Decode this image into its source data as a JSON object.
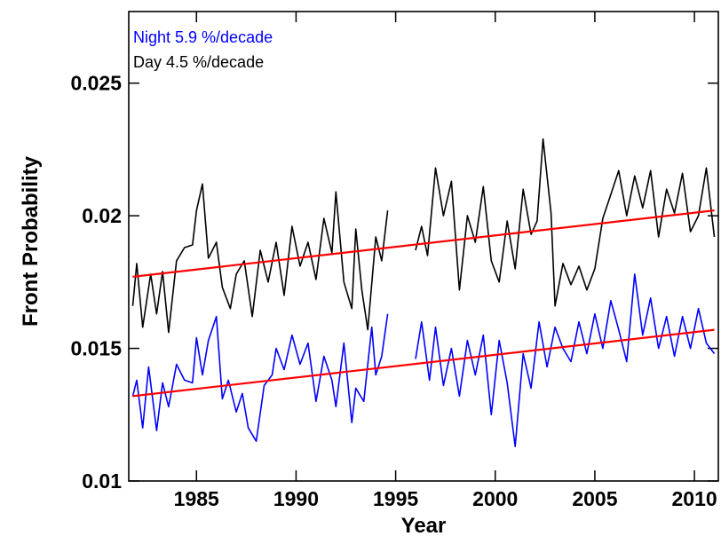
{
  "chart_data": {
    "type": "line",
    "title": "",
    "xlabel": "Year",
    "ylabel": "Front Probability",
    "xlim": [
      1981.6,
      2011.2
    ],
    "ylim": [
      0.01,
      0.0277
    ],
    "x_ticks": [
      1985,
      1990,
      1995,
      2000,
      2005,
      2010
    ],
    "x_tick_labels": [
      "1985",
      "1990",
      "1995",
      "2000",
      "2005",
      "2010"
    ],
    "y_ticks": [
      0.01,
      0.015,
      0.02,
      0.025
    ],
    "y_tick_labels": [
      "0.01",
      "0.015",
      "0.02",
      "0.025"
    ],
    "grid": false,
    "legend_placement": "top-left",
    "annotations": [
      {
        "text": "Night 5.9 %/decade",
        "color": "#0000ff"
      },
      {
        "text": "Day 4.5 %/decade",
        "color": "#000000"
      }
    ],
    "series": [
      {
        "color": "#000000",
        "x": [
          1981.8,
          1982.0,
          1982.3,
          1982.7,
          1983.0,
          1983.3,
          1983.6,
          1984.0,
          1984.4,
          1984.8,
          1985.0,
          1985.3,
          1985.6,
          1986.0,
          1986.3,
          1986.7,
          1987.0,
          1987.4,
          1987.8,
          1988.2,
          1988.6,
          1989.0,
          1989.4,
          1989.8,
          1990.2,
          1990.6,
          1991.0,
          1991.4,
          1991.8,
          1992.0,
          1992.4,
          1992.8,
          1993.0,
          1993.3,
          1993.6,
          1994.0,
          1994.3,
          1994.6,
          null,
          1996.0,
          1996.3,
          1996.6,
          1997.0,
          1997.4,
          1997.8,
          1998.2,
          1998.6,
          1999.0,
          1999.4,
          1999.8,
          2000.2,
          2000.6,
          2001.0,
          2001.4,
          2001.8,
          2002.1,
          2002.4,
          2002.8,
          2003.0,
          2003.4,
          2003.8,
          2004.2,
          2004.6,
          2005.0,
          2005.4,
          2005.8,
          2006.2,
          2006.6,
          2007.0,
          2007.4,
          2007.8,
          2008.2,
          2008.6,
          2009.0,
          2009.4,
          2009.8,
          2010.2,
          2010.6,
          2011.0
        ],
        "values": [
          0.0166,
          0.0182,
          0.0158,
          0.0178,
          0.0163,
          0.0179,
          0.0156,
          0.0183,
          0.0188,
          0.0189,
          0.0202,
          0.0212,
          0.0184,
          0.019,
          0.0173,
          0.0165,
          0.0178,
          0.0183,
          0.0162,
          0.0187,
          0.0175,
          0.019,
          0.017,
          0.0196,
          0.0181,
          0.019,
          0.0176,
          0.0199,
          0.0186,
          0.0209,
          0.0175,
          0.0165,
          0.0195,
          0.0172,
          0.0157,
          0.0192,
          0.0183,
          0.0202,
          null,
          0.0187,
          0.0196,
          0.0185,
          0.0218,
          0.02,
          0.0213,
          0.0172,
          0.02,
          0.019,
          0.0211,
          0.0183,
          0.0175,
          0.0198,
          0.018,
          0.021,
          0.0193,
          0.0198,
          0.0229,
          0.0201,
          0.0166,
          0.0182,
          0.0174,
          0.0181,
          0.0172,
          0.018,
          0.0199,
          0.0208,
          0.0217,
          0.02,
          0.0215,
          0.0203,
          0.0217,
          0.0192,
          0.021,
          0.0201,
          0.0216,
          0.0194,
          0.02,
          0.0218,
          0.0192
        ],
        "trend": {
          "x": [
            1981.8,
            2011.0
          ],
          "values": [
            0.0177,
            0.0202
          ]
        }
      },
      {
        "color": "#0000ff",
        "x": [
          1981.8,
          1982.0,
          1982.3,
          1982.6,
          1983.0,
          1983.3,
          1983.6,
          1984.0,
          1984.4,
          1984.8,
          1985.0,
          1985.3,
          1985.6,
          1986.0,
          1986.3,
          1986.6,
          1987.0,
          1987.3,
          1987.6,
          1988.0,
          1988.4,
          1988.8,
          1989.0,
          1989.4,
          1989.8,
          1990.2,
          1990.6,
          1991.0,
          1991.4,
          1991.8,
          1992.0,
          1992.4,
          1992.8,
          1993.0,
          1993.4,
          1993.8,
          1994.0,
          1994.3,
          1994.6,
          null,
          1996.0,
          1996.3,
          1996.7,
          1997.0,
          1997.4,
          1997.8,
          1998.2,
          1998.6,
          1999.0,
          1999.4,
          1999.8,
          2000.2,
          2000.6,
          2001.0,
          2001.4,
          2001.8,
          2002.2,
          2002.6,
          2003.0,
          2003.4,
          2003.8,
          2004.2,
          2004.6,
          2005.0,
          2005.4,
          2005.8,
          2006.2,
          2006.6,
          2007.0,
          2007.4,
          2007.8,
          2008.2,
          2008.6,
          2009.0,
          2009.4,
          2009.8,
          2010.2,
          2010.6,
          2011.0
        ],
        "values": [
          0.0132,
          0.0138,
          0.012,
          0.0143,
          0.0119,
          0.0137,
          0.0128,
          0.0144,
          0.0138,
          0.0137,
          0.0154,
          0.014,
          0.0153,
          0.0162,
          0.0131,
          0.0138,
          0.0126,
          0.0133,
          0.012,
          0.0115,
          0.0136,
          0.014,
          0.015,
          0.0142,
          0.0155,
          0.0144,
          0.0152,
          0.013,
          0.0147,
          0.0138,
          0.0128,
          0.0152,
          0.0122,
          0.0135,
          0.013,
          0.0158,
          0.014,
          0.0147,
          0.0163,
          null,
          0.0146,
          0.016,
          0.0138,
          0.0158,
          0.0136,
          0.015,
          0.0132,
          0.0153,
          0.014,
          0.0155,
          0.0125,
          0.0153,
          0.0137,
          0.0113,
          0.0148,
          0.0135,
          0.016,
          0.0143,
          0.0158,
          0.015,
          0.0145,
          0.016,
          0.0148,
          0.0163,
          0.015,
          0.0168,
          0.0157,
          0.0145,
          0.0178,
          0.0155,
          0.0169,
          0.015,
          0.0162,
          0.0147,
          0.0162,
          0.015,
          0.0165,
          0.0152,
          0.0148
        ],
        "trend": {
          "x": [
            1981.8,
            2011.0
          ],
          "values": [
            0.0132,
            0.0157
          ]
        }
      }
    ]
  }
}
